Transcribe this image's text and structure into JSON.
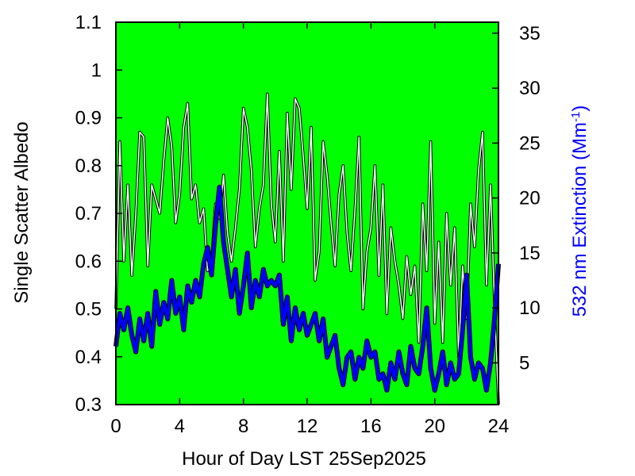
{
  "chart_data": {
    "type": "line",
    "xlabel": "Hour of Day LST 25Sep2025",
    "ylabel_left": "Single Scatter Albedo",
    "ylabel_right_text": "532 nm Extinction (Mm",
    "ylabel_right_sup": "-1",
    "ylabel_right_close": ")",
    "xlim": [
      0,
      24
    ],
    "ylim_left": [
      0.3,
      1.1
    ],
    "ylim_right": [
      1.2,
      36
    ],
    "x_ticks": [
      0,
      4,
      8,
      12,
      16,
      20,
      24
    ],
    "x_tick_labels": [
      "0",
      "4",
      "8",
      "12",
      "16",
      "20",
      "24"
    ],
    "y_left_ticks": [
      0.3,
      0.4,
      0.5,
      0.6,
      0.7,
      0.8,
      0.9,
      1.0,
      1.1
    ],
    "y_left_tick_labels": [
      "0.3",
      "0.4",
      "0.5",
      "0.6",
      "0.7",
      "0.8",
      "0.9",
      "1",
      "1.1"
    ],
    "y_right_ticks": [
      5,
      10,
      15,
      20,
      25,
      30,
      35
    ],
    "y_right_tick_labels": [
      "5",
      "10",
      "15",
      "20",
      "25",
      "30",
      "35"
    ],
    "plot_background": "#00ff00",
    "grid": false,
    "series": [
      {
        "axis": "left",
        "color": "#ffffff",
        "outline": "#000000",
        "x": [
          0,
          0.25,
          0.5,
          0.75,
          1.0,
          1.25,
          1.5,
          1.75,
          2.0,
          2.25,
          2.5,
          2.75,
          3.0,
          3.25,
          3.5,
          3.75,
          4.0,
          4.25,
          4.5,
          4.75,
          5.0,
          5.25,
          5.5,
          5.75,
          6.0,
          6.25,
          6.5,
          6.75,
          7.0,
          7.25,
          7.5,
          7.75,
          8.0,
          8.25,
          8.5,
          8.75,
          9.0,
          9.25,
          9.5,
          9.75,
          10.0,
          10.25,
          10.5,
          10.75,
          11.0,
          11.25,
          11.5,
          11.75,
          12.0,
          12.25,
          12.5,
          12.75,
          13.0,
          13.25,
          13.5,
          13.75,
          14.0,
          14.25,
          14.5,
          14.75,
          15.0,
          15.25,
          15.5,
          15.75,
          16.0,
          16.25,
          16.5,
          16.75,
          17.0,
          17.25,
          17.5,
          17.75,
          18.0,
          18.25,
          18.5,
          18.75,
          19.0,
          19.25,
          19.5,
          19.75,
          20.0,
          20.25,
          20.5,
          20.75,
          21.0,
          21.25,
          21.5,
          21.75,
          22.0,
          22.25,
          22.5,
          22.75,
          23.0,
          23.25,
          23.5,
          23.75,
          24.0
        ],
        "values": [
          0.5,
          0.85,
          0.6,
          0.76,
          0.57,
          0.7,
          0.87,
          0.86,
          0.59,
          0.76,
          0.73,
          0.7,
          0.81,
          0.9,
          0.84,
          0.68,
          0.74,
          0.88,
          0.93,
          0.73,
          0.76,
          0.68,
          0.71,
          0.58,
          0.6,
          0.72,
          0.69,
          0.78,
          0.66,
          0.6,
          0.67,
          0.75,
          0.92,
          0.88,
          0.79,
          0.63,
          0.71,
          0.76,
          0.95,
          0.72,
          0.64,
          0.83,
          0.6,
          0.91,
          0.75,
          0.94,
          0.92,
          0.82,
          0.71,
          0.88,
          0.56,
          0.62,
          0.85,
          0.78,
          0.68,
          0.59,
          0.74,
          0.8,
          0.66,
          0.58,
          0.71,
          0.86,
          0.5,
          0.62,
          0.67,
          0.8,
          0.57,
          0.76,
          0.49,
          0.67,
          0.6,
          0.55,
          0.48,
          0.61,
          0.53,
          0.59,
          0.43,
          0.72,
          0.58,
          0.85,
          0.47,
          0.64,
          0.43,
          0.7,
          0.55,
          0.67,
          0.4,
          0.59,
          0.48,
          0.72,
          0.63,
          0.79,
          0.87,
          0.55,
          0.76,
          0.51,
          0.3
        ]
      },
      {
        "axis": "right",
        "color": "#0000ff",
        "outline": "#000000",
        "x": [
          0,
          0.25,
          0.5,
          0.75,
          1.0,
          1.25,
          1.5,
          1.75,
          2.0,
          2.25,
          2.5,
          2.75,
          3.0,
          3.25,
          3.5,
          3.75,
          4.0,
          4.25,
          4.5,
          4.75,
          5.0,
          5.25,
          5.5,
          5.75,
          6.0,
          6.25,
          6.5,
          6.75,
          7.0,
          7.25,
          7.5,
          7.75,
          8.0,
          8.25,
          8.5,
          8.75,
          9.0,
          9.25,
          9.5,
          9.75,
          10.0,
          10.25,
          10.5,
          10.75,
          11.0,
          11.25,
          11.5,
          11.75,
          12.0,
          12.25,
          12.5,
          12.75,
          13.0,
          13.25,
          13.5,
          13.75,
          14.0,
          14.25,
          14.5,
          14.75,
          15.0,
          15.25,
          15.5,
          15.75,
          16.0,
          16.25,
          16.5,
          16.75,
          17.0,
          17.25,
          17.5,
          17.75,
          18.0,
          18.25,
          18.5,
          18.75,
          19.0,
          19.25,
          19.5,
          19.75,
          20.0,
          20.25,
          20.5,
          20.75,
          21.0,
          21.25,
          21.5,
          21.75,
          22.0,
          22.25,
          22.5,
          22.75,
          23.0,
          23.25,
          23.5,
          23.75,
          24.0
        ],
        "values": [
          6.5,
          9.5,
          8.0,
          10.0,
          7.5,
          6.0,
          9.0,
          7.0,
          9.5,
          6.5,
          11.5,
          8.5,
          10.5,
          9.0,
          12.5,
          9.5,
          11.0,
          8.0,
          12.0,
          10.5,
          12.5,
          11.0,
          14.0,
          15.5,
          13.0,
          17.5,
          21.0,
          16.0,
          13.5,
          11.0,
          13.5,
          9.5,
          12.0,
          15.0,
          10.0,
          12.5,
          11.0,
          13.5,
          12.0,
          12.5,
          12.0,
          13.0,
          8.5,
          11.0,
          7.0,
          10.0,
          8.0,
          9.5,
          7.5,
          8.5,
          9.5,
          7.0,
          9.0,
          5.5,
          6.5,
          7.5,
          4.5,
          3.0,
          5.5,
          6.0,
          3.5,
          5.5,
          4.5,
          7.0,
          5.5,
          6.0,
          3.5,
          4.0,
          2.5,
          5.0,
          3.5,
          6.0,
          4.0,
          3.0,
          6.5,
          4.5,
          4.0,
          6.5,
          10.0,
          4.5,
          2.5,
          4.0,
          6.0,
          3.0,
          5.0,
          3.5,
          4.0,
          8.0,
          13.0,
          5.5,
          3.5,
          5.0,
          4.5,
          2.5,
          5.0,
          9.0,
          14.0
        ]
      }
    ]
  }
}
